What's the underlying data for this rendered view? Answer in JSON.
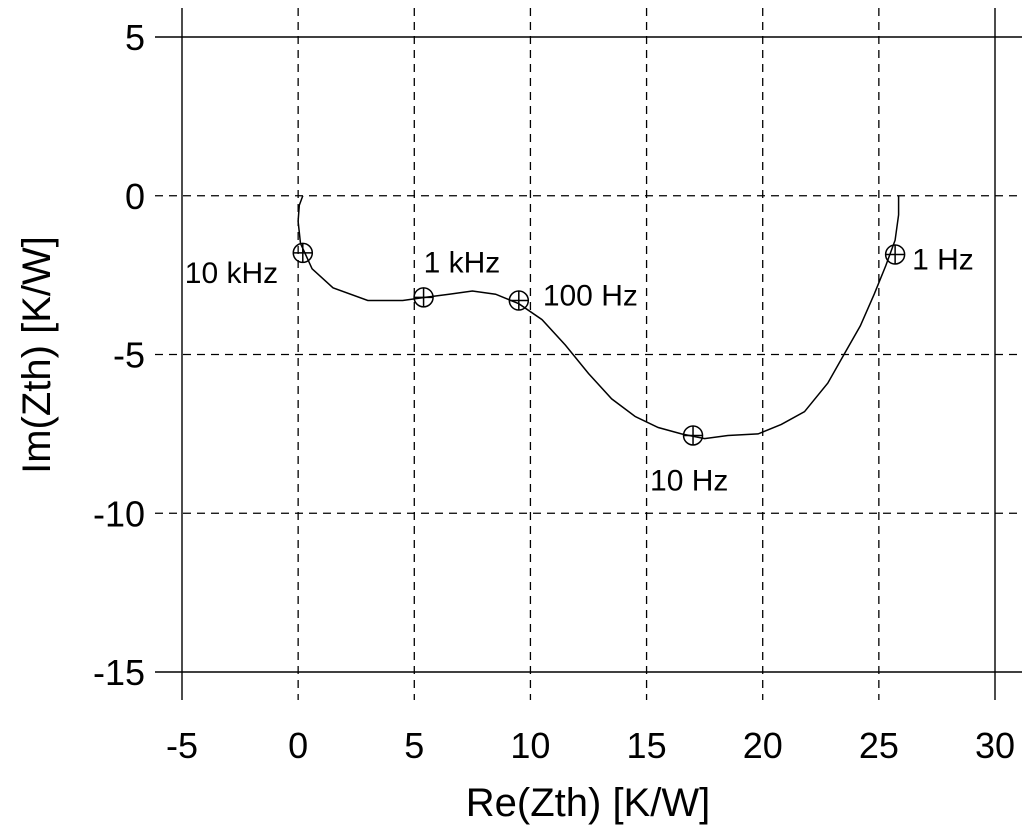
{
  "chart_data": {
    "type": "line",
    "xlabel": "Re(Zth) [K/W]",
    "ylabel": "Im(Zth) [K/W]",
    "xlim": [
      -5,
      30
    ],
    "ylim": [
      -15,
      5
    ],
    "x_ticks": [
      "-5",
      "0",
      "5",
      "10",
      "15",
      "20",
      "25",
      "30"
    ],
    "y_ticks": [
      "5",
      "0",
      "-5",
      "-10",
      "-15"
    ],
    "grid": true,
    "series": [
      {
        "x": [
          0.2,
          0.05,
          0.0,
          0.1,
          0.6,
          1.5,
          3.0,
          4.5,
          5.5,
          6.5,
          7.5,
          8.5,
          9.5,
          10.5,
          11.5,
          12.5,
          13.5,
          14.5,
          15.5,
          16.5,
          17.5,
          18.5,
          19.8,
          20.8,
          21.8,
          22.8,
          23.5,
          24.2,
          24.8,
          25.3,
          25.7,
          25.85,
          25.85
        ],
        "y": [
          0.0,
          -0.3,
          -0.8,
          -1.5,
          -2.3,
          -2.9,
          -3.3,
          -3.3,
          -3.2,
          -3.1,
          -3.0,
          -3.1,
          -3.4,
          -3.9,
          -4.7,
          -5.6,
          -6.4,
          -6.95,
          -7.3,
          -7.5,
          -7.65,
          -7.55,
          -7.5,
          -7.2,
          -6.8,
          -5.9,
          -5.0,
          -4.1,
          -3.1,
          -2.2,
          -1.4,
          -0.6,
          0.0
        ]
      }
    ],
    "markers": [
      {
        "label": "10 kHz",
        "x": 0.2,
        "y": -1.8
      },
      {
        "label": "1 kHz",
        "x": 5.4,
        "y": -3.2
      },
      {
        "label": "100 Hz",
        "x": 9.5,
        "y": -3.3
      },
      {
        "label": "10 Hz",
        "x": 17.0,
        "y": -7.55
      },
      {
        "label": "1 Hz",
        "x": 25.7,
        "y": -1.85
      }
    ]
  }
}
